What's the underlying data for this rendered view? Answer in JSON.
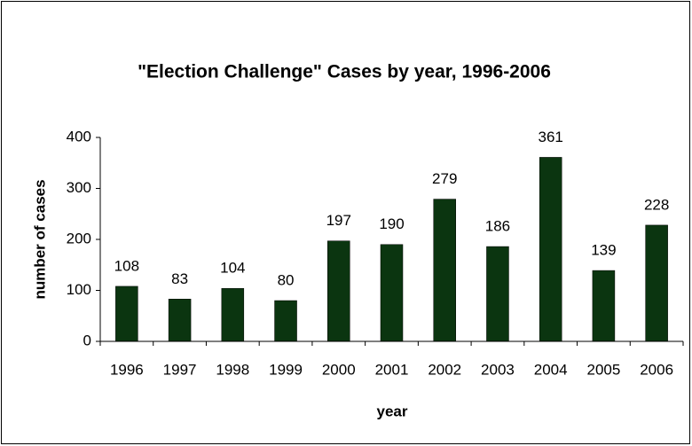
{
  "chart_data": {
    "type": "bar",
    "title": "\"Election Challenge\" Cases by year, 1996-2006",
    "x_label": "year",
    "y_label": "number of cases",
    "categories": [
      "1996",
      "1997",
      "1998",
      "1999",
      "2000",
      "2001",
      "2002",
      "2003",
      "2004",
      "2005",
      "2006"
    ],
    "values": [
      108,
      83,
      104,
      80,
      197,
      190,
      279,
      186,
      361,
      139,
      228
    ],
    "color": "#0b3510",
    "ylim": [
      0,
      400
    ],
    "yticks": [
      0,
      100,
      200,
      300,
      400
    ],
    "grid": false
  }
}
